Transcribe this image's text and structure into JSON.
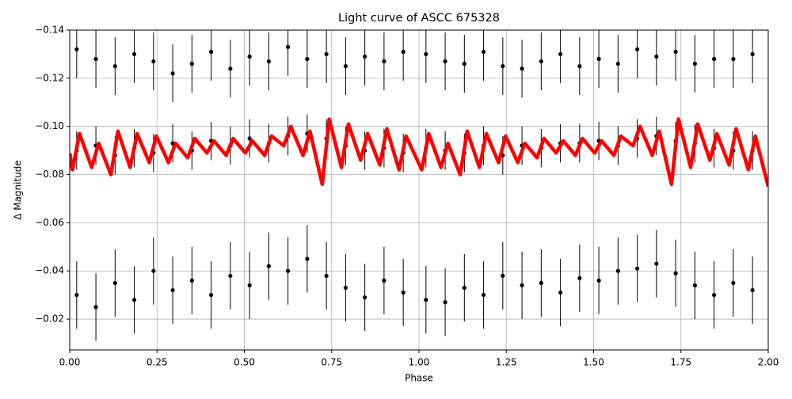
{
  "chart_data": {
    "type": "scatter",
    "title": "Light curve of ASCC 675328",
    "xlabel": "Phase",
    "ylabel": "Δ Magnitude",
    "xlim": [
      0,
      2
    ],
    "ylim": [
      -0.0072,
      -0.14
    ],
    "grid": true,
    "xticks": [
      {
        "value": 0,
        "label": "0.00"
      },
      {
        "value": 0.25,
        "label": "0.25"
      },
      {
        "value": 0.5,
        "label": "0.50"
      },
      {
        "value": 0.75,
        "label": "0.75"
      },
      {
        "value": 1,
        "label": "1.00"
      },
      {
        "value": 1.25,
        "label": "1.25"
      },
      {
        "value": 1.5,
        "label": "1.50"
      },
      {
        "value": 1.75,
        "label": "1.75"
      },
      {
        "value": 2,
        "label": "2.00"
      }
    ],
    "yticks": [
      {
        "value": -0.14,
        "label": "−0.14"
      },
      {
        "value": -0.12,
        "label": "−0.12"
      },
      {
        "value": -0.1,
        "label": "−0.10"
      },
      {
        "value": -0.08,
        "label": "−0.08"
      },
      {
        "value": -0.06,
        "label": "−0.06"
      },
      {
        "value": -0.04,
        "label": "−0.04"
      },
      {
        "value": -0.02,
        "label": "−0.02"
      }
    ],
    "series": [
      {
        "type": "scatter",
        "color": "#000000",
        "x": [
          0.02,
          0.02,
          0.02,
          0.075,
          0.075,
          0.075,
          0.13,
          0.13,
          0.13,
          0.185,
          0.185,
          0.185,
          0.24,
          0.24,
          0.24,
          0.295,
          0.295,
          0.295,
          0.35,
          0.35,
          0.35,
          0.405,
          0.405,
          0.405,
          0.46,
          0.46,
          0.46,
          0.515,
          0.515,
          0.515,
          0.57,
          0.57,
          0.57,
          0.625,
          0.625,
          0.625,
          0.68,
          0.68,
          0.68,
          0.735,
          0.735,
          0.735,
          0.79,
          0.79,
          0.79,
          0.845,
          0.845,
          0.845,
          0.9,
          0.9,
          0.9,
          0.955,
          0.955,
          0.955,
          1.02,
          1.02,
          1.02,
          1.075,
          1.075,
          1.075,
          1.13,
          1.13,
          1.13,
          1.185,
          1.185,
          1.185,
          1.24,
          1.24,
          1.24,
          1.295,
          1.295,
          1.295,
          1.35,
          1.35,
          1.35,
          1.405,
          1.405,
          1.405,
          1.46,
          1.46,
          1.46,
          1.515,
          1.515,
          1.515,
          1.57,
          1.57,
          1.57,
          1.625,
          1.625,
          1.625,
          1.68,
          1.68,
          1.68,
          1.735,
          1.735,
          1.735,
          1.79,
          1.79,
          1.79,
          1.845,
          1.845,
          1.845,
          1.9,
          1.9,
          1.9,
          1.955,
          1.955,
          1.955
        ],
        "values": [
          -0.132,
          -0.09,
          -0.03,
          -0.128,
          -0.092,
          -0.025,
          -0.125,
          -0.088,
          -0.035,
          -0.13,
          -0.091,
          -0.028,
          -0.127,
          -0.089,
          -0.04,
          -0.122,
          -0.093,
          -0.032,
          -0.126,
          -0.09,
          -0.036,
          -0.131,
          -0.094,
          -0.03,
          -0.124,
          -0.092,
          -0.038,
          -0.129,
          -0.095,
          -0.034,
          -0.127,
          -0.093,
          -0.042,
          -0.133,
          -0.096,
          -0.04,
          -0.128,
          -0.097,
          -0.045,
          -0.13,
          -0.095,
          -0.038,
          -0.125,
          -0.092,
          -0.033,
          -0.129,
          -0.09,
          -0.029,
          -0.127,
          -0.091,
          -0.036,
          -0.131,
          -0.089,
          -0.031,
          -0.13,
          -0.091,
          -0.028,
          -0.127,
          -0.09,
          -0.027,
          -0.126,
          -0.089,
          -0.033,
          -0.131,
          -0.092,
          -0.03,
          -0.125,
          -0.088,
          -0.038,
          -0.124,
          -0.092,
          -0.034,
          -0.127,
          -0.091,
          -0.035,
          -0.13,
          -0.093,
          -0.031,
          -0.125,
          -0.093,
          -0.037,
          -0.128,
          -0.094,
          -0.036,
          -0.126,
          -0.092,
          -0.04,
          -0.132,
          -0.095,
          -0.041,
          -0.129,
          -0.096,
          -0.043,
          -0.131,
          -0.094,
          -0.039,
          -0.126,
          -0.093,
          -0.034,
          -0.128,
          -0.091,
          -0.03,
          -0.128,
          -0.09,
          -0.035,
          -0.13,
          -0.09,
          -0.032
        ],
        "errors": [
          0.012,
          0.008,
          0.014,
          0.012,
          0.008,
          0.014,
          0.012,
          0.008,
          0.014,
          0.012,
          0.008,
          0.014,
          0.012,
          0.008,
          0.014,
          0.012,
          0.008,
          0.014,
          0.012,
          0.008,
          0.014,
          0.012,
          0.008,
          0.014,
          0.012,
          0.008,
          0.014,
          0.012,
          0.008,
          0.014,
          0.012,
          0.008,
          0.014,
          0.012,
          0.008,
          0.014,
          0.012,
          0.008,
          0.014,
          0.012,
          0.008,
          0.014,
          0.012,
          0.008,
          0.014,
          0.012,
          0.008,
          0.014,
          0.012,
          0.008,
          0.014,
          0.012,
          0.008,
          0.014,
          0.012,
          0.008,
          0.014,
          0.012,
          0.008,
          0.014,
          0.012,
          0.008,
          0.014,
          0.012,
          0.008,
          0.014,
          0.012,
          0.008,
          0.014,
          0.012,
          0.008,
          0.014,
          0.012,
          0.008,
          0.014,
          0.012,
          0.008,
          0.014,
          0.012,
          0.008,
          0.014,
          0.012,
          0.008,
          0.014,
          0.012,
          0.008,
          0.014,
          0.012,
          0.008,
          0.014,
          0.012,
          0.008,
          0.014,
          0.012,
          0.008,
          0.014,
          0.012,
          0.008,
          0.014,
          0.012,
          0.008,
          0.014,
          0.012,
          0.008,
          0.014,
          0.012,
          0.008,
          0.014
        ]
      },
      {
        "type": "line",
        "color": "#ff0000",
        "x": [
          0,
          0.008,
          0.028,
          0.063,
          0.083,
          0.118,
          0.138,
          0.173,
          0.193,
          0.228,
          0.248,
          0.283,
          0.303,
          0.338,
          0.358,
          0.393,
          0.413,
          0.448,
          0.468,
          0.503,
          0.523,
          0.558,
          0.578,
          0.613,
          0.633,
          0.668,
          0.688,
          0.723,
          0.743,
          0.778,
          0.798,
          0.833,
          0.853,
          0.888,
          0.908,
          0.943,
          0.963,
          1.008,
          1.028,
          1.063,
          1.083,
          1.118,
          1.138,
          1.173,
          1.193,
          1.228,
          1.248,
          1.283,
          1.303,
          1.338,
          1.358,
          1.393,
          1.413,
          1.448,
          1.468,
          1.503,
          1.523,
          1.558,
          1.578,
          1.613,
          1.633,
          1.668,
          1.688,
          1.723,
          1.743,
          1.778,
          1.798,
          1.833,
          1.853,
          1.888,
          1.908,
          1.943,
          1.963,
          2
        ],
        "values": [
          -0.089,
          -0.082,
          -0.097,
          -0.083,
          -0.093,
          -0.08,
          -0.098,
          -0.083,
          -0.097,
          -0.085,
          -0.096,
          -0.085,
          -0.093,
          -0.087,
          -0.095,
          -0.089,
          -0.094,
          -0.088,
          -0.095,
          -0.089,
          -0.094,
          -0.088,
          -0.096,
          -0.092,
          -0.1,
          -0.088,
          -0.098,
          -0.076,
          -0.103,
          -0.083,
          -0.101,
          -0.086,
          -0.097,
          -0.084,
          -0.099,
          -0.082,
          -0.096,
          -0.082,
          -0.097,
          -0.083,
          -0.093,
          -0.08,
          -0.098,
          -0.083,
          -0.097,
          -0.085,
          -0.096,
          -0.085,
          -0.093,
          -0.087,
          -0.095,
          -0.089,
          -0.094,
          -0.088,
          -0.095,
          -0.089,
          -0.094,
          -0.088,
          -0.096,
          -0.092,
          -0.1,
          -0.088,
          -0.098,
          -0.076,
          -0.103,
          -0.083,
          -0.101,
          -0.086,
          -0.097,
          -0.084,
          -0.099,
          -0.082,
          -0.096,
          -0.075
        ]
      }
    ]
  }
}
